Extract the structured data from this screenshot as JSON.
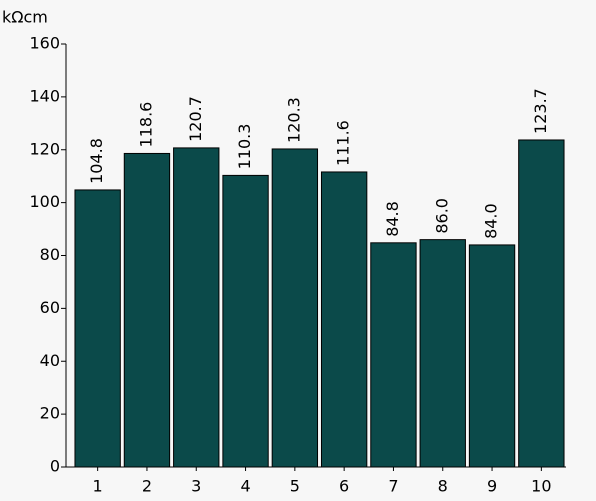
{
  "chart_data": {
    "type": "bar",
    "y_label": "kΩcm",
    "categories": [
      "1",
      "2",
      "3",
      "4",
      "5",
      "6",
      "7",
      "8",
      "9",
      "10"
    ],
    "values": [
      104.8,
      118.6,
      120.7,
      110.3,
      120.3,
      111.6,
      84.8,
      86.0,
      84.0,
      123.7
    ],
    "value_labels": [
      "104.8",
      "118.6",
      "120.7",
      "110.3",
      "120.3",
      "111.6",
      "84.8",
      "86.0",
      "84.0",
      "123.7"
    ],
    "color": "#0b4a4a",
    "ylim": [
      0,
      160
    ],
    "yticks": [
      0,
      20,
      40,
      60,
      80,
      100,
      120,
      140,
      160
    ]
  }
}
